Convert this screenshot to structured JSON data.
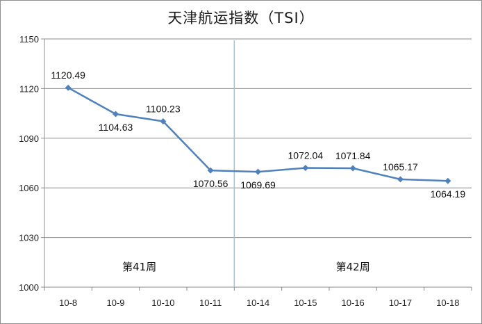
{
  "chart_data": {
    "type": "line",
    "title": "天津航运指数（TSI）",
    "categories": [
      "10-8",
      "10-9",
      "10-10",
      "10-11",
      "10-14",
      "10-15",
      "10-16",
      "10-17",
      "10-18"
    ],
    "series": [
      {
        "values": [
          1120.49,
          1104.63,
          1100.23,
          1070.56,
          1069.69,
          1072.04,
          1071.84,
          1065.17,
          1064.19
        ]
      }
    ],
    "data_labels": [
      "1120.49",
      "1104.63",
      "1100.23",
      "1070.56",
      "1069.69",
      "1072.04",
      "1071.84",
      "1065.17",
      "1064.19"
    ],
    "ylim": [
      1000,
      1150
    ],
    "yticks": [
      1000,
      1030,
      1060,
      1090,
      1120,
      1150
    ],
    "grid": true,
    "week_labels": [
      "第41周",
      "第42周"
    ],
    "line_color": "#4f81bd",
    "marker_color": "#4f81bd",
    "grid_color": "#8c8c8c",
    "divider_color": "#9cc3d8"
  }
}
